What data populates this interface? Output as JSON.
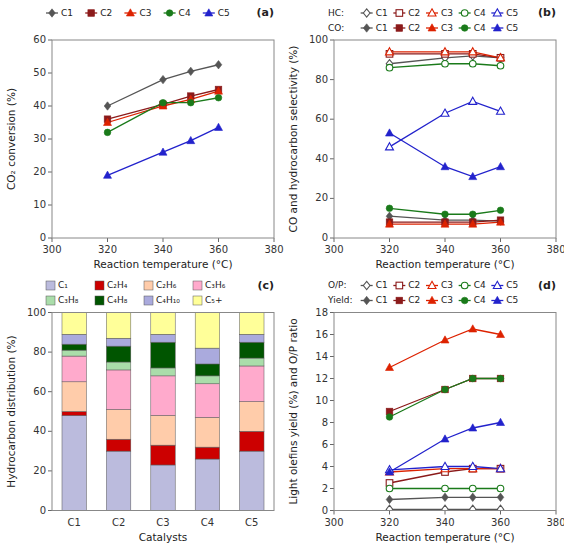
{
  "chart_data": [
    {
      "type": "line",
      "x_label": "Reaction temperature (°C)",
      "y_label": "CO₂ conversion (%)",
      "annotation": "(a)",
      "x": [
        320,
        340,
        350,
        360
      ],
      "xlim": [
        300,
        380
      ],
      "xticks": [
        300,
        320,
        340,
        360,
        380
      ],
      "ylim": [
        0,
        60
      ],
      "yticks": [
        0,
        10,
        20,
        30,
        40,
        50,
        60
      ],
      "grid": false,
      "legend": "top",
      "series": [
        {
          "name": "C1",
          "color": "#555555",
          "marker": "diamond",
          "values": [
            40,
            48,
            50.5,
            52.5
          ]
        },
        {
          "name": "C2",
          "color": "#8B1A1A",
          "marker": "square",
          "values": [
            36,
            40.5,
            43,
            45
          ]
        },
        {
          "name": "C3",
          "color": "#DD2200",
          "marker": "triangle",
          "values": [
            35,
            40,
            42,
            44.5
          ]
        },
        {
          "name": "C4",
          "color": "#1A7A1A",
          "marker": "circle",
          "values": [
            32,
            41,
            41,
            42.5
          ]
        },
        {
          "name": "C5",
          "color": "#2222CC",
          "marker": "triangle",
          "values": [
            19,
            26,
            29.5,
            33.5
          ]
        }
      ]
    },
    {
      "type": "line",
      "x_label": "Reaction temperature (°C)",
      "y_label": "CO and hydrocarbon selectivity (%)",
      "annotation": "(b)",
      "x": [
        320,
        340,
        350,
        360
      ],
      "xlim": [
        300,
        380
      ],
      "xticks": [
        300,
        320,
        340,
        360,
        380
      ],
      "ylim": [
        0,
        100
      ],
      "yticks": [
        0,
        20,
        40,
        60,
        80,
        100
      ],
      "grid": false,
      "legend": "top",
      "series": [
        {
          "name": "C1",
          "group": "HC:",
          "color": "#555555",
          "marker": "diamond-open",
          "values": [
            88,
            91,
            92,
            91
          ]
        },
        {
          "name": "C2",
          "group": "HC:",
          "color": "#8B1A1A",
          "marker": "square-open",
          "values": [
            93,
            93,
            93,
            91
          ]
        },
        {
          "name": "C3",
          "group": "HC:",
          "color": "#DD2200",
          "marker": "triangle-open",
          "values": [
            94,
            94,
            94,
            91
          ]
        },
        {
          "name": "C4",
          "group": "HC:",
          "color": "#1A7A1A",
          "marker": "circle-open",
          "values": [
            86,
            88,
            88,
            87
          ]
        },
        {
          "name": "C5",
          "group": "HC:",
          "color": "#2222CC",
          "marker": "triangle-open",
          "values": [
            46,
            63,
            69,
            64
          ]
        },
        {
          "name": "C1",
          "group": "CO:",
          "color": "#555555",
          "marker": "diamond",
          "values": [
            11,
            9,
            9,
            8.5
          ]
        },
        {
          "name": "C2",
          "group": "CO:",
          "color": "#8B1A1A",
          "marker": "square",
          "values": [
            8,
            8,
            8,
            9
          ]
        },
        {
          "name": "C3",
          "group": "CO:",
          "color": "#DD2200",
          "marker": "triangle",
          "values": [
            7,
            7,
            7,
            8
          ]
        },
        {
          "name": "C4",
          "group": "CO:",
          "color": "#1A7A1A",
          "marker": "circle",
          "values": [
            15,
            12,
            12,
            14
          ]
        },
        {
          "name": "C5",
          "group": "CO:",
          "color": "#2222CC",
          "marker": "triangle",
          "values": [
            53,
            36,
            31,
            36
          ]
        }
      ]
    },
    {
      "type": "bar",
      "stacked": true,
      "x_label": "Catalysts",
      "y_label": "Hydrocarbon distribution (%)",
      "annotation": "(c)",
      "categories": [
        "C1",
        "C2",
        "C3",
        "C4",
        "C5"
      ],
      "ylim": [
        0,
        100
      ],
      "yticks": [
        0,
        20,
        40,
        60,
        80,
        100
      ],
      "grid": false,
      "legend": "top",
      "series": [
        {
          "name": "C₁",
          "color": "#BBBBDD",
          "values": [
            48,
            30,
            23,
            26,
            30
          ]
        },
        {
          "name": "C₂H₄",
          "color": "#CC0000",
          "values": [
            2,
            6,
            10,
            6,
            10
          ]
        },
        {
          "name": "C₂H₆",
          "color": "#FFCCAA",
          "values": [
            15,
            15,
            15,
            15,
            15
          ]
        },
        {
          "name": "C₃H₆",
          "color": "#FFAACC",
          "values": [
            13,
            20,
            20,
            17,
            18
          ]
        },
        {
          "name": "C₃H₈",
          "color": "#AADDAA",
          "values": [
            3,
            4,
            4,
            4,
            4
          ]
        },
        {
          "name": "C₄H₈",
          "color": "#005500",
          "values": [
            3,
            8,
            13,
            6,
            8
          ]
        },
        {
          "name": "C₄H₁₀",
          "color": "#AAAADD",
          "values": [
            5,
            4,
            4,
            8,
            4
          ]
        },
        {
          "name": "C₅+",
          "color": "#FFFF99",
          "values": [
            11,
            13,
            11,
            18,
            11
          ]
        }
      ]
    },
    {
      "type": "line",
      "x_label": "Reaction temperature (°C)",
      "y_label": "Light olefins yield (%) and O/P ratio",
      "annotation": "(d)",
      "x": [
        320,
        340,
        350,
        360
      ],
      "xlim": [
        300,
        380
      ],
      "xticks": [
        300,
        320,
        340,
        360,
        380
      ],
      "ylim": [
        0,
        18
      ],
      "yticks": [
        0,
        2,
        4,
        6,
        8,
        10,
        12,
        14,
        16,
        18
      ],
      "grid": false,
      "legend": "top",
      "series": [
        {
          "name": "C1",
          "group": "O/P:",
          "color": "#555555",
          "marker": "diamond-open",
          "values": [
            0.1,
            0.1,
            0.1,
            0.1
          ]
        },
        {
          "name": "C2",
          "group": "O/P:",
          "color": "#8B1A1A",
          "marker": "square-open",
          "values": [
            2.5,
            3.5,
            3.8,
            3.8
          ]
        },
        {
          "name": "C3",
          "group": "O/P:",
          "color": "#DD2200",
          "marker": "triangle-open",
          "values": [
            3.5,
            3.8,
            3.8,
            3.8
          ]
        },
        {
          "name": "C4",
          "group": "O/P:",
          "color": "#1A7A1A",
          "marker": "circle-open",
          "values": [
            2.0,
            2.0,
            2.0,
            2.0
          ]
        },
        {
          "name": "C5",
          "group": "O/P:",
          "color": "#2222CC",
          "marker": "triangle-open",
          "values": [
            3.7,
            4.0,
            4.0,
            3.8
          ]
        },
        {
          "name": "C1",
          "group": "Yield:",
          "color": "#555555",
          "marker": "diamond",
          "values": [
            1.0,
            1.2,
            1.2,
            1.2
          ]
        },
        {
          "name": "C2",
          "group": "Yield:",
          "color": "#8B1A1A",
          "marker": "square",
          "values": [
            9.0,
            11.0,
            12.0,
            12.0
          ]
        },
        {
          "name": "C3",
          "group": "Yield:",
          "color": "#DD2200",
          "marker": "triangle",
          "values": [
            13.0,
            15.5,
            16.5,
            16.0
          ]
        },
        {
          "name": "C4",
          "group": "Yield:",
          "color": "#1A7A1A",
          "marker": "circle",
          "values": [
            8.5,
            11.0,
            12.0,
            12.0
          ]
        },
        {
          "name": "C5",
          "group": "Yield:",
          "color": "#2222CC",
          "marker": "triangle",
          "values": [
            3.5,
            6.5,
            7.5,
            8.0
          ]
        }
      ]
    }
  ]
}
